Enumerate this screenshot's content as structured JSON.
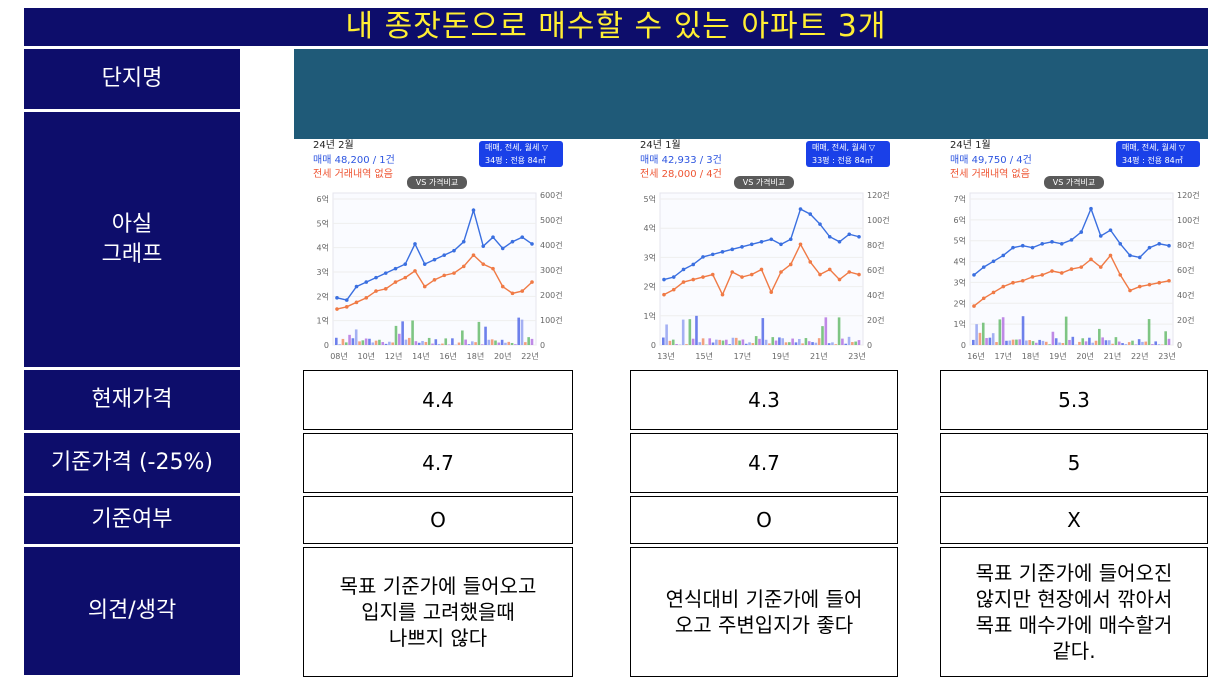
{
  "title": "내 종잣돈으로 매수할 수 있는 아파트 3개",
  "row_labels": {
    "complex": "단지명",
    "graph": "아실\n그래프",
    "current": "현재가격",
    "standard": "기준가격 (-25%)",
    "meets": "기준여부",
    "opinion": "의견/생각"
  },
  "apartments": [
    {
      "chart": {
        "period": "24년 2월",
        "sale": "매매 48,200 / 1건",
        "rent": "전세 거래내역 없음",
        "badge_top": "매매, 전세, 월세 ▽",
        "badge_size": "34평",
        "badge_area": "전용 84㎡",
        "vs": "VS 가격비교",
        "y_left": [
          "6억",
          "5억",
          "4억",
          "3억",
          "2억",
          "1억",
          "0"
        ],
        "y_right": [
          "600건",
          "500건",
          "400건",
          "300건",
          "200건",
          "100건",
          "0"
        ],
        "x_ticks": [
          "08년",
          "10년",
          "12년",
          "14년",
          "16년",
          "18년",
          "20년",
          "22년"
        ]
      },
      "current": "4.4",
      "standard": "4.7",
      "meets": "O",
      "opinion": "목표 기준가에 들어오고\n입지를 고려했을때\n나쁘지 않다"
    },
    {
      "chart": {
        "period": "24년 1월",
        "sale": "매매 42,933 / 3건",
        "rent": "전세 28,000 / 4건",
        "badge_top": "매매, 전세, 월세 ▽",
        "badge_size": "33평",
        "badge_area": "전용 84㎡",
        "vs": "VS 가격비교",
        "y_left": [
          "5억",
          "4억",
          "3억",
          "2억",
          "1억",
          "0"
        ],
        "y_right": [
          "120건",
          "100건",
          "80건",
          "60건",
          "40건",
          "20건",
          "0"
        ],
        "x_ticks": [
          "13년",
          "15년",
          "17년",
          "19년",
          "21년",
          "23년"
        ]
      },
      "current": "4.3",
      "standard": "4.7",
      "meets": "O",
      "opinion": "연식대비 기준가에 들어\n오고 주변입지가 좋다"
    },
    {
      "chart": {
        "period": "24년 1월",
        "sale": "매매 49,750 / 4건",
        "rent": "전세 거래내역 없음",
        "badge_top": "매매, 전세, 월세 ▽",
        "badge_size": "34평",
        "badge_area": "전용 84㎡",
        "vs": "VS 가격비교",
        "y_left": [
          "7억",
          "6억",
          "5억",
          "4억",
          "3억",
          "2억",
          "1억",
          "0"
        ],
        "y_right": [
          "120건",
          "100건",
          "80건",
          "60건",
          "40건",
          "20건",
          "0"
        ],
        "x_ticks": [
          "16년",
          "17년",
          "18년",
          "19년",
          "20년",
          "21년",
          "22년",
          "23년"
        ]
      },
      "current": "5.3",
      "standard": "5",
      "meets": "X",
      "opinion": "목표 기준가에 들어오진\n않지만 현장에서 깎아서\n목표 매수가에 매수할거\n같다."
    }
  ],
  "colors": {
    "navy": "#0d0d6b",
    "title_text": "#ffee33",
    "teal": "#1f5a78",
    "sale_line": "#3a6fe0",
    "rent_line": "#f07a45"
  }
}
